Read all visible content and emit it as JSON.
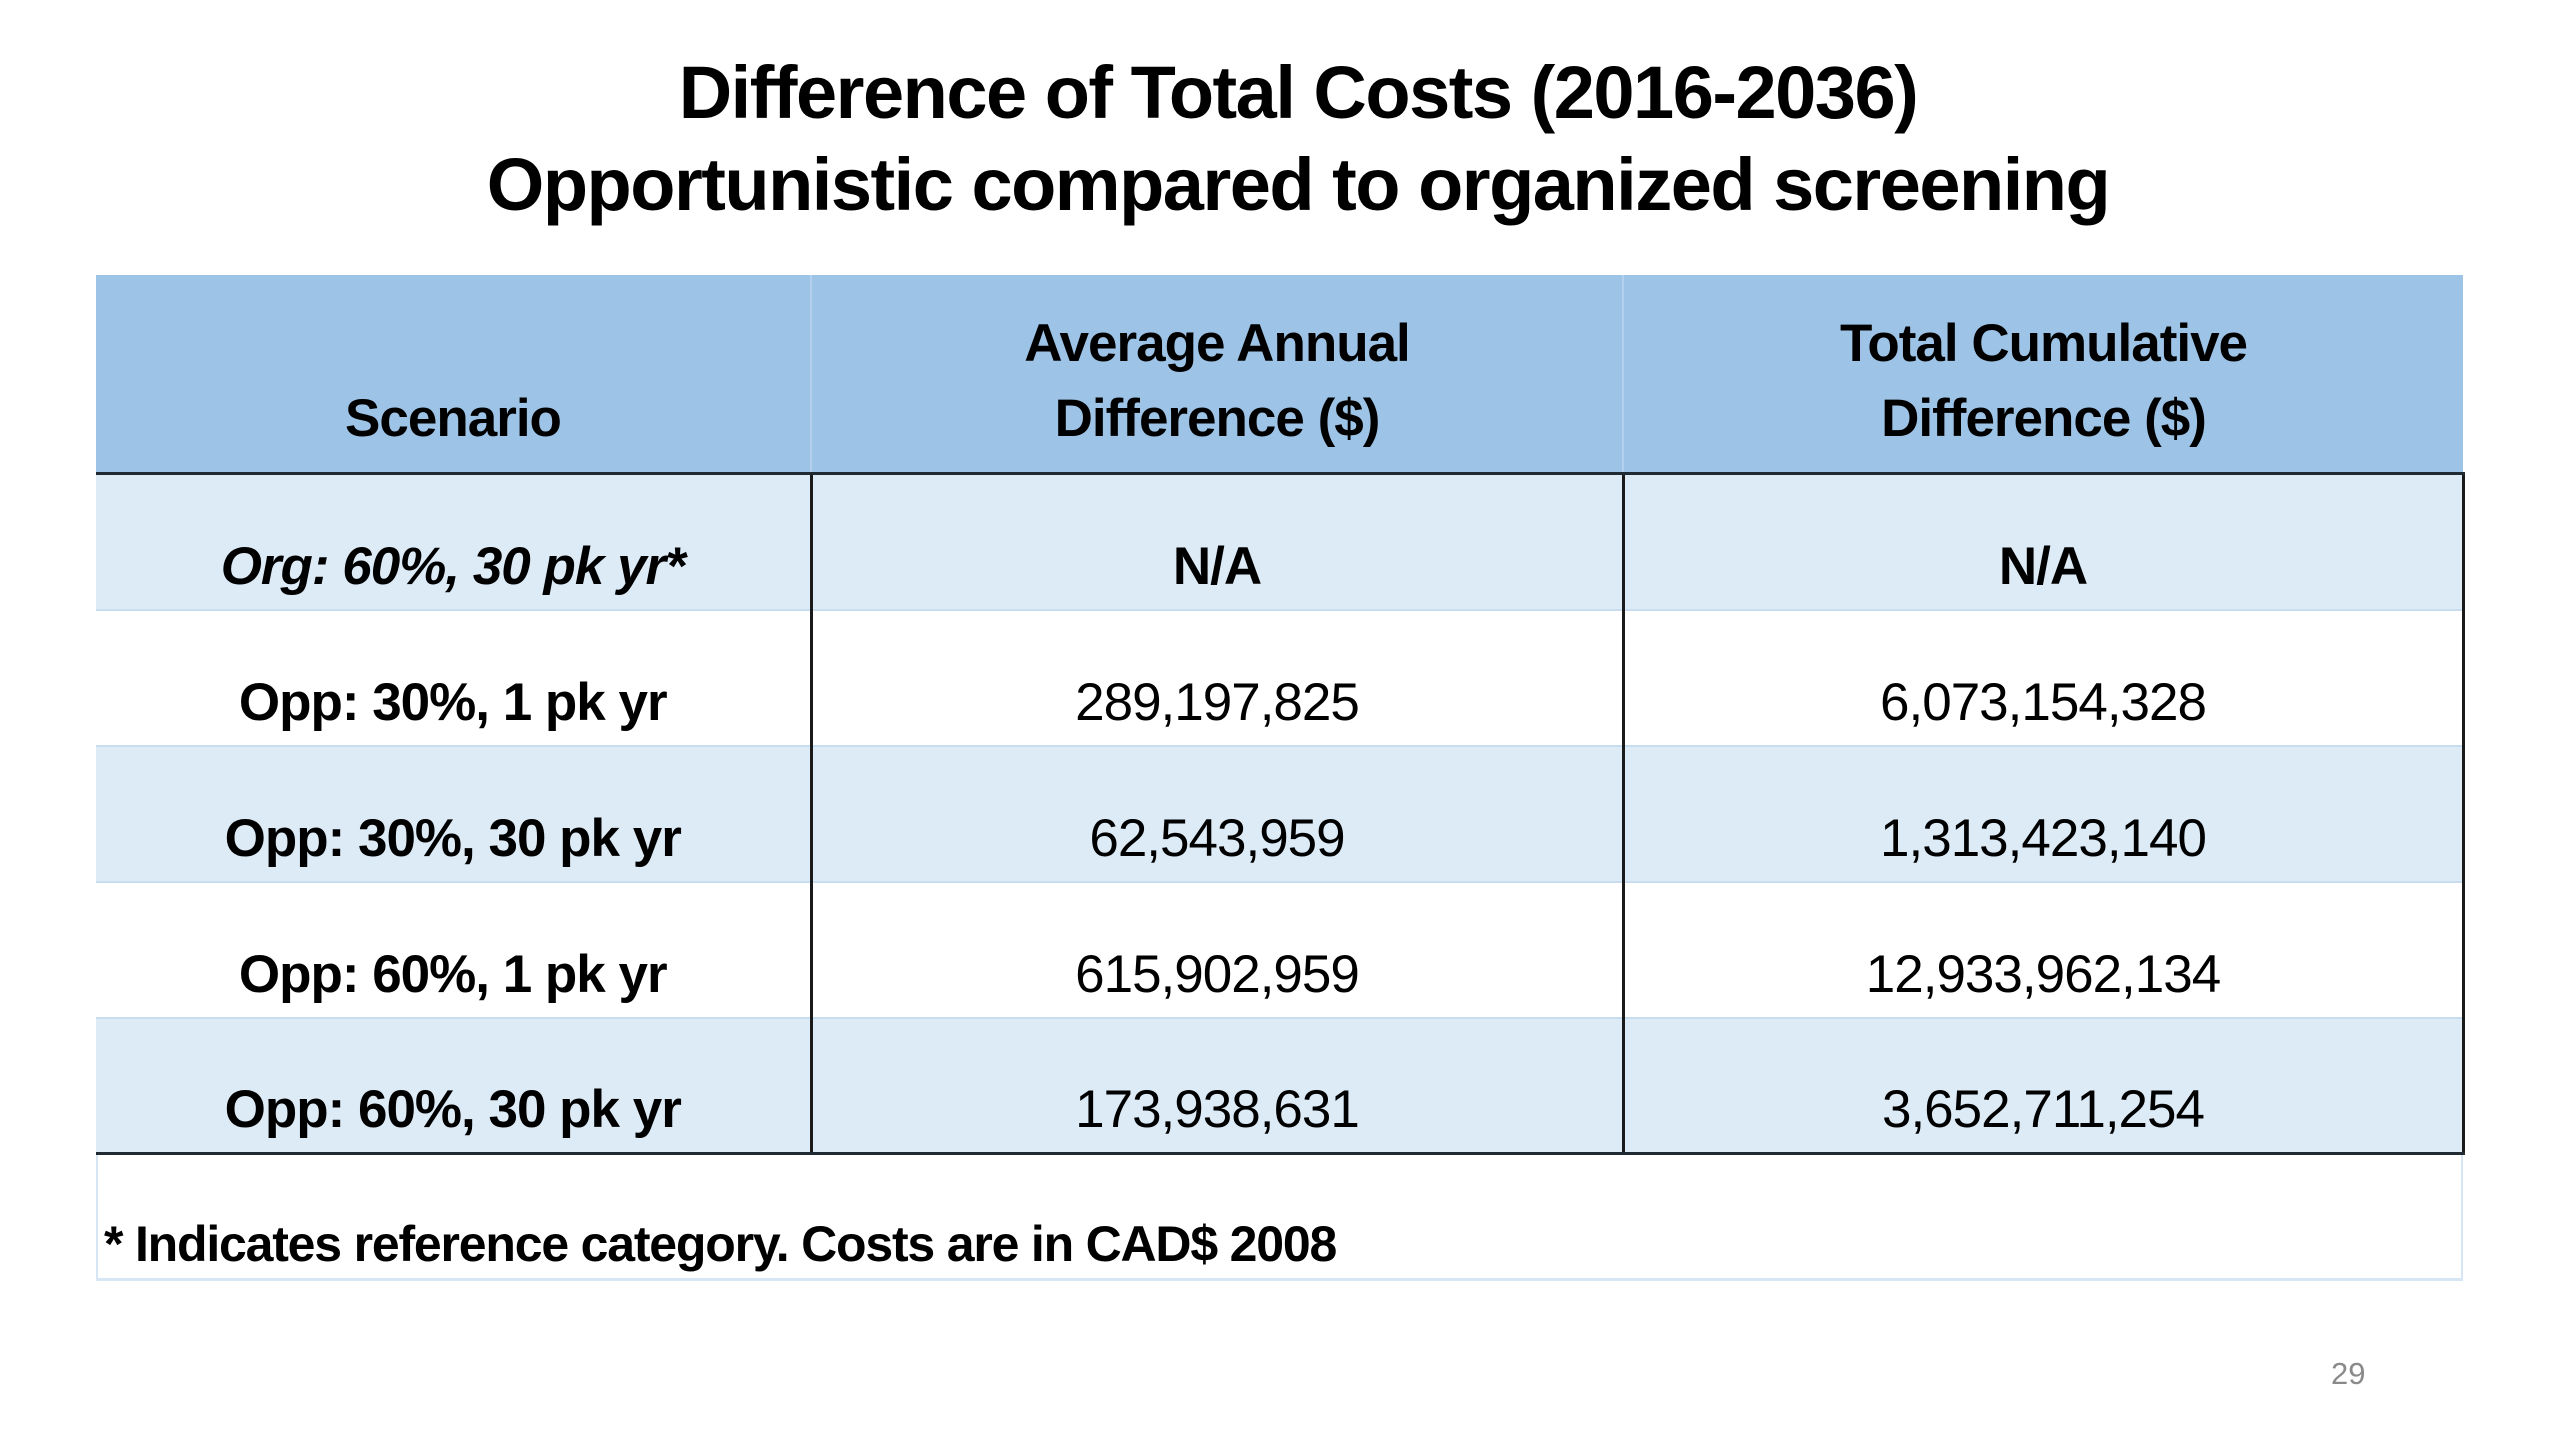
{
  "slide": {
    "title_line1": "Difference of Total Costs (2016-2036)",
    "title_line2": "Opportunistic compared to organized screening",
    "page_number": "29"
  },
  "table": {
    "columns": [
      "Scenario",
      "Average Annual Difference ($)",
      "Total Cumulative Difference ($)"
    ],
    "header_lines": [
      [
        "",
        "Scenario"
      ],
      [
        "Average Annual",
        "Difference ($)"
      ],
      [
        "Total Cumulative",
        "Difference ($)"
      ]
    ],
    "rows": [
      {
        "scenario": "Org: 60%, 30 pk yr*",
        "avg_annual": "N/A",
        "total_cumulative": "N/A",
        "reference": true
      },
      {
        "scenario": "Opp: 30%, 1 pk yr",
        "avg_annual": "289,197,825",
        "total_cumulative": "6,073,154,328",
        "reference": false
      },
      {
        "scenario": "Opp: 30%, 30 pk yr",
        "avg_annual": "62,543,959",
        "total_cumulative": "1,313,423,140",
        "reference": false
      },
      {
        "scenario": "Opp: 60%, 1 pk yr",
        "avg_annual": "615,902,959",
        "total_cumulative": "12,933,962,134",
        "reference": false
      },
      {
        "scenario": "Opp: 60%, 30 pk yr",
        "avg_annual": "173,938,631",
        "total_cumulative": "3,652,711,254",
        "reference": false
      }
    ],
    "footnote": "* Indicates reference category. Costs are in CAD$ 2008"
  },
  "colors": {
    "header_bg": "#9dc3e6",
    "band_bg": "#ddebf7",
    "text": "#000000",
    "page_number": "#8a8a8a"
  }
}
